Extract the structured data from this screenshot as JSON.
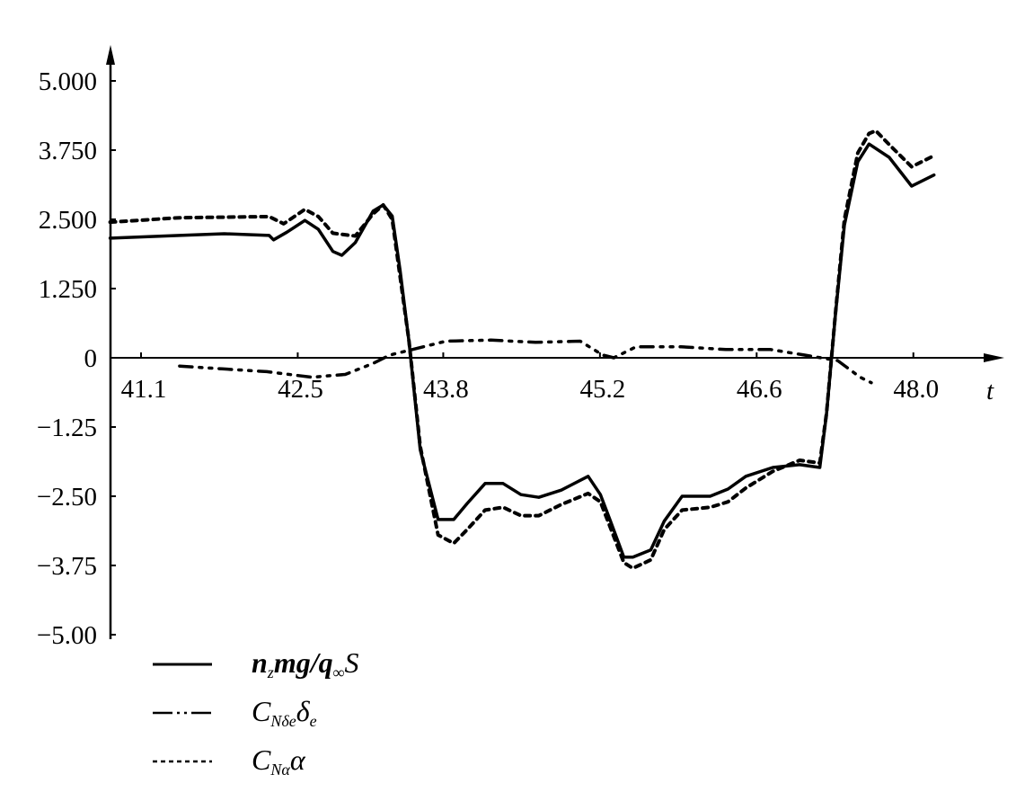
{
  "chart_data": {
    "type": "line",
    "title": "",
    "xlabel": "t",
    "ylabel": "",
    "xlim": [
      40.8,
      48.75
    ],
    "ylim": [
      -5.0,
      5.0
    ],
    "grid": false,
    "legend_placement": "bottom-left",
    "x_ticks": [
      {
        "value": 41.1,
        "label": "41.1"
      },
      {
        "value": 42.5,
        "label": "42.5"
      },
      {
        "value": 43.8,
        "label": "43.8"
      },
      {
        "value": 45.2,
        "label": "45.2"
      },
      {
        "value": 46.6,
        "label": "46.6"
      },
      {
        "value": 48.0,
        "label": "48.0"
      }
    ],
    "y_ticks": [
      {
        "value": 5.0,
        "label": "5.000"
      },
      {
        "value": 3.75,
        "label": "3.750"
      },
      {
        "value": 2.5,
        "label": "2.500"
      },
      {
        "value": 1.25,
        "label": "1.250"
      },
      {
        "value": 0,
        "label": "0"
      },
      {
        "value": -1.25,
        "label": "−1.25"
      },
      {
        "value": -2.5,
        "label": "−2.50"
      },
      {
        "value": -3.75,
        "label": "−3.75"
      },
      {
        "value": -5.0,
        "label": "−5.00"
      }
    ],
    "series": [
      {
        "name": "n_z mg/q_∞ S",
        "style": "solid",
        "color": "#000000",
        "x": [
          40.8,
          41.42,
          41.82,
          42.22,
          42.26,
          42.38,
          42.54,
          42.66,
          42.79,
          42.87,
          42.99,
          43.15,
          43.24,
          43.32,
          43.39,
          43.47,
          43.52,
          43.57,
          43.73,
          43.87,
          43.99,
          44.15,
          44.31,
          44.47,
          44.63,
          44.83,
          45.07,
          45.18,
          45.27,
          45.39,
          45.47,
          45.63,
          45.75,
          45.91,
          46.16,
          46.32,
          46.48,
          46.72,
          46.96,
          47.14,
          47.2,
          47.28,
          47.36,
          47.48,
          47.58,
          47.76,
          47.96,
          48.16
        ],
        "y": [
          2.16,
          2.21,
          2.24,
          2.21,
          2.13,
          2.27,
          2.48,
          2.32,
          1.92,
          1.85,
          2.08,
          2.65,
          2.76,
          2.56,
          1.59,
          0.29,
          -0.68,
          -1.66,
          -2.92,
          -2.92,
          -2.63,
          -2.27,
          -2.27,
          -2.47,
          -2.52,
          -2.39,
          -2.14,
          -2.47,
          -2.95,
          -3.6,
          -3.6,
          -3.47,
          -2.95,
          -2.5,
          -2.5,
          -2.37,
          -2.14,
          -1.98,
          -1.93,
          -1.98,
          -1.01,
          0.78,
          2.4,
          3.54,
          3.86,
          3.62,
          3.1,
          3.3
        ]
      },
      {
        "name": "C_Nδe δ_e",
        "style": "dash-dot",
        "color": "#000000",
        "x": [
          41.42,
          41.8,
          42.2,
          42.6,
          42.9,
          43.15,
          43.3,
          43.6,
          43.8,
          44.2,
          44.6,
          45.0,
          45.2,
          45.3,
          45.5,
          45.9,
          46.3,
          46.7,
          47.0,
          47.3,
          47.5,
          47.6
        ],
        "y": [
          -0.15,
          -0.2,
          -0.25,
          -0.35,
          -0.3,
          -0.1,
          0.05,
          0.2,
          0.3,
          0.32,
          0.28,
          0.3,
          0.05,
          0.0,
          0.2,
          0.2,
          0.15,
          0.15,
          0.05,
          -0.05,
          -0.35,
          -0.45
        ]
      },
      {
        "name": "C_Nα α",
        "style": "dashed",
        "color": "#000000",
        "x": [
          40.8,
          41.42,
          42.22,
          42.35,
          42.54,
          42.66,
          42.79,
          42.99,
          43.15,
          43.24,
          43.32,
          43.47,
          43.57,
          43.73,
          43.87,
          43.99,
          44.15,
          44.31,
          44.47,
          44.63,
          44.83,
          45.07,
          45.18,
          45.39,
          45.47,
          45.63,
          45.75,
          45.91,
          46.16,
          46.32,
          46.48,
          46.72,
          46.96,
          47.14,
          47.2,
          47.28,
          47.36,
          47.48,
          47.58,
          47.64,
          47.76,
          47.96,
          48.16
        ],
        "y": [
          2.45,
          2.53,
          2.55,
          2.42,
          2.68,
          2.55,
          2.25,
          2.2,
          2.6,
          2.76,
          2.5,
          0.3,
          -1.6,
          -3.2,
          -3.35,
          -3.1,
          -2.75,
          -2.7,
          -2.85,
          -2.85,
          -2.65,
          -2.45,
          -2.6,
          -3.7,
          -3.8,
          -3.65,
          -3.1,
          -2.75,
          -2.7,
          -2.6,
          -2.35,
          -2.05,
          -1.85,
          -1.9,
          -1.0,
          0.8,
          2.5,
          3.7,
          4.05,
          4.1,
          3.85,
          3.45,
          3.65
        ]
      }
    ],
    "legend": [
      {
        "style": "solid",
        "parts": [
          "n",
          "z",
          "mg/q",
          "∞",
          "S"
        ]
      },
      {
        "style": "dash-dot",
        "parts": [
          "C",
          "Nδe",
          "δ",
          "e"
        ]
      },
      {
        "style": "dashed",
        "parts": [
          "C",
          "Nα",
          "α"
        ]
      }
    ]
  }
}
